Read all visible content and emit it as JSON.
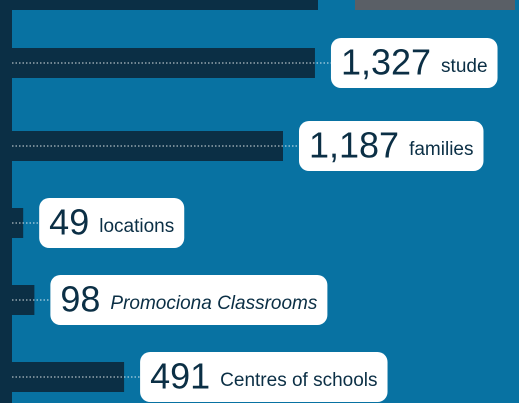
{
  "chart_data": {
    "type": "bar",
    "orientation": "horizontal",
    "categories": [
      "stude",
      "families",
      "locations",
      "Promociona Classrooms",
      "Centres of schools"
    ],
    "values": [
      1327,
      1187,
      49,
      98,
      491
    ],
    "value_labels": [
      "1,327",
      "1,187",
      "49",
      "98",
      "491"
    ],
    "color": "#0b2f45"
  }
}
